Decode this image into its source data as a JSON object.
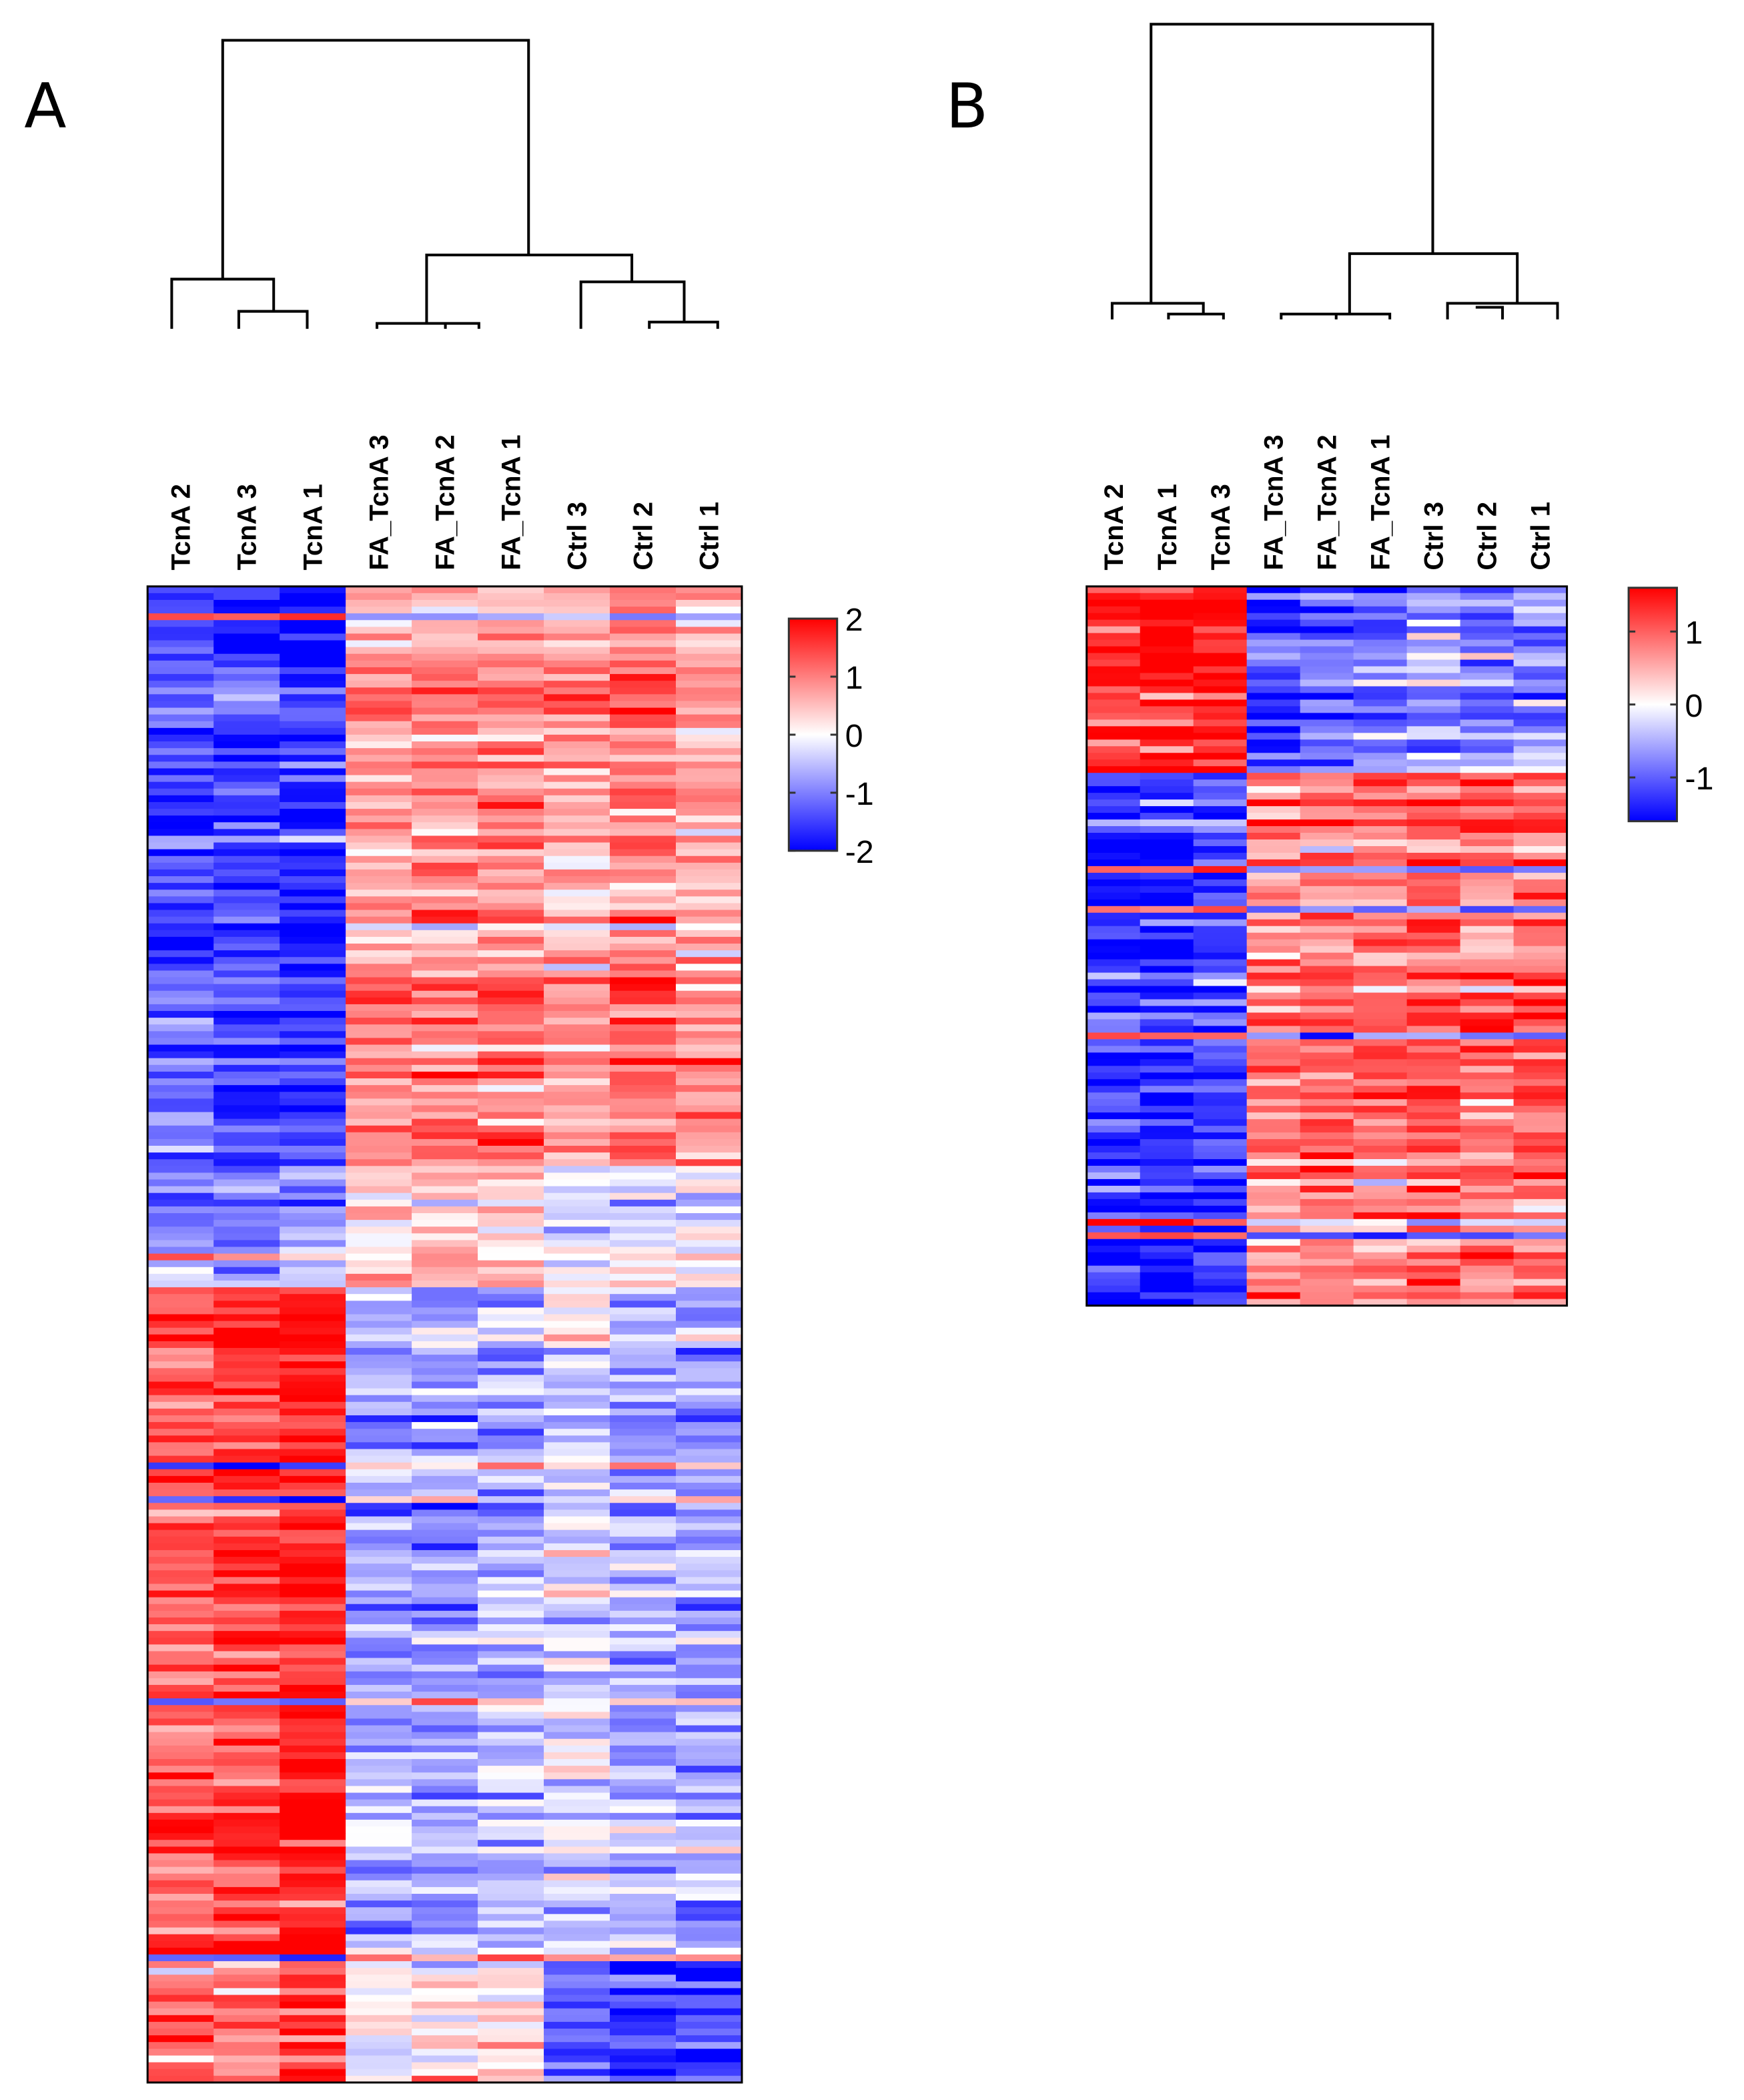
{
  "chart_data": [
    {
      "type": "heatmap",
      "panel_label": "A",
      "columns": [
        "TcnA 2",
        "TcnA 3",
        "TcnA 1",
        "FA_TcnA 3",
        "FA_TcnA 2",
        "FA_TcnA 1",
        "Ctrl 3",
        "Ctrl 2",
        "Ctrl 1"
      ],
      "colorbar": {
        "min": -2,
        "max": 2,
        "ticks": [
          "2",
          "1",
          "0",
          "-1",
          "-2"
        ],
        "tick_values": [
          2,
          1,
          0,
          -1,
          -2
        ],
        "low_color": "#0000ff",
        "mid_color": "#ffffff",
        "high_color": "#ff0000"
      },
      "noise_sd": 0.35,
      "row_blocks": [
        {
          "rows": 86,
          "means": [
            -1.3,
            -1.5,
            -1.7,
            0.8,
            0.9,
            1.0,
            0.7,
            1.0,
            0.8
          ]
        },
        {
          "rows": 18,
          "means": [
            -1.0,
            -1.1,
            -0.9,
            0.2,
            0.4,
            0.3,
            -0.2,
            -0.1,
            -0.2
          ]
        },
        {
          "rows": 100,
          "means": [
            1.3,
            1.5,
            1.8,
            -0.7,
            -0.8,
            -0.6,
            -0.3,
            -0.6,
            -0.7
          ]
        },
        {
          "rows": 18,
          "means": [
            1.1,
            1.0,
            1.5,
            -0.1,
            0.1,
            0.1,
            -1.3,
            -1.6,
            -1.5
          ]
        }
      ]
    },
    {
      "type": "heatmap",
      "panel_label": "B",
      "columns": [
        "TcnA 2",
        "TcnA 1",
        "TcnA 3",
        "FA_TcnA 3",
        "FA_TcnA 2",
        "FA_TcnA 1",
        "Ctrl 3",
        "Ctrl 2",
        "Ctrl 1"
      ],
      "colorbar": {
        "min": -1.6,
        "max": 1.6,
        "ticks": [
          "1",
          "0",
          "-1"
        ],
        "tick_values": [
          1,
          0,
          -1
        ],
        "low_color": "#0000ff",
        "mid_color": "#ffffff",
        "high_color": "#ff0000"
      },
      "noise_sd": 0.3,
      "row_blocks": [
        {
          "rows": 28,
          "means": [
            1.4,
            1.6,
            1.5,
            -1.1,
            -1.0,
            -0.8,
            -0.5,
            -0.8,
            -0.7
          ]
        },
        {
          "rows": 80,
          "means": [
            -1.3,
            -1.4,
            -1.2,
            0.8,
            0.8,
            0.8,
            1.0,
            0.9,
            0.9
          ]
        }
      ]
    }
  ]
}
